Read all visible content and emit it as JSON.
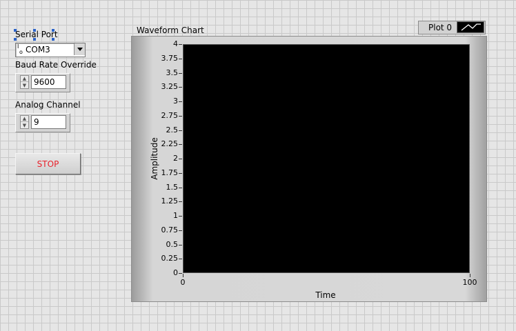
{
  "serial_port": {
    "label": "Serial Port",
    "io_prefix": "I/O",
    "value": "COM3"
  },
  "baud_rate": {
    "label": "Baud Rate Override",
    "value": "9600"
  },
  "analog_channel": {
    "label": "Analog Channel",
    "value": "9"
  },
  "stop_button": {
    "label": "STOP",
    "color": "#e8202a"
  },
  "chart": {
    "title": "Waveform Chart",
    "legend_label": "Plot 0",
    "plot_background": "#000000"
  },
  "chart_data": {
    "type": "line",
    "title": "Waveform Chart",
    "xlabel": "Time",
    "ylabel": "Amplitude",
    "xlim": [
      0,
      100
    ],
    "ylim": [
      0,
      4
    ],
    "x_ticks": [
      "0",
      "100"
    ],
    "y_ticks": [
      "0",
      "0.25",
      "0.5",
      "0.75",
      "1",
      "1.25",
      "1.5",
      "1.75",
      "2",
      "2.25",
      "2.5",
      "2.75",
      "3",
      "3.25",
      "3.5",
      "3.75",
      "4"
    ],
    "series": [
      {
        "name": "Plot 0",
        "values": []
      }
    ],
    "grid": false,
    "legend_position": "top-right"
  }
}
